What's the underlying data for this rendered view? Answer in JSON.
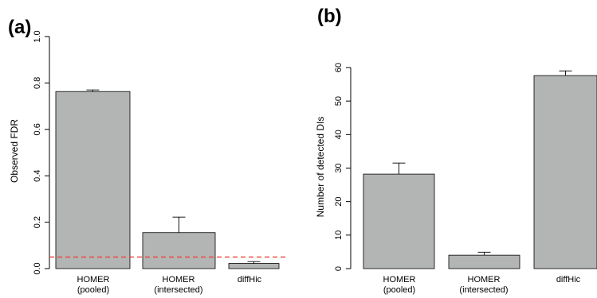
{
  "panels": [
    {
      "label": "(a)",
      "chart_data": {
        "type": "bar",
        "categories": [
          [
            "HOMER",
            "(pooled)"
          ],
          [
            "HOMER",
            "(intersected)"
          ],
          [
            "diffHic"
          ]
        ],
        "values": [
          0.763,
          0.155,
          0.022
        ],
        "errors": [
          0.007,
          0.067,
          0.008
        ],
        "ylabel": "Observed FDR",
        "ylim": [
          0,
          1.0
        ],
        "yticks": [
          0.0,
          0.2,
          0.4,
          0.6,
          0.8,
          1.0
        ],
        "ytick_labels": [
          "0.0",
          "0.2",
          "0.4",
          "0.6",
          "0.8",
          "1.0"
        ],
        "reference_line": {
          "y": 0.05,
          "color": "#e8403a",
          "style": "dashed"
        },
        "bar_color": "#b3b5b5",
        "grid": false
      }
    },
    {
      "label": "(b)",
      "chart_data": {
        "type": "bar",
        "categories": [
          [
            "HOMER",
            "(pooled)"
          ],
          [
            "HOMER",
            "(intersected)"
          ],
          [
            "diffHic"
          ]
        ],
        "values": [
          28.2,
          4.0,
          57.6
        ],
        "errors": [
          3.3,
          0.9,
          1.4
        ],
        "ylabel": "Number of detected DIs",
        "ylim": [
          0,
          60
        ],
        "yticks": [
          0,
          10,
          20,
          30,
          40,
          50,
          60
        ],
        "ytick_labels": [
          "0",
          "10",
          "20",
          "30",
          "40",
          "50",
          "60"
        ],
        "bar_color": "#b3b5b5",
        "grid": false
      }
    }
  ]
}
